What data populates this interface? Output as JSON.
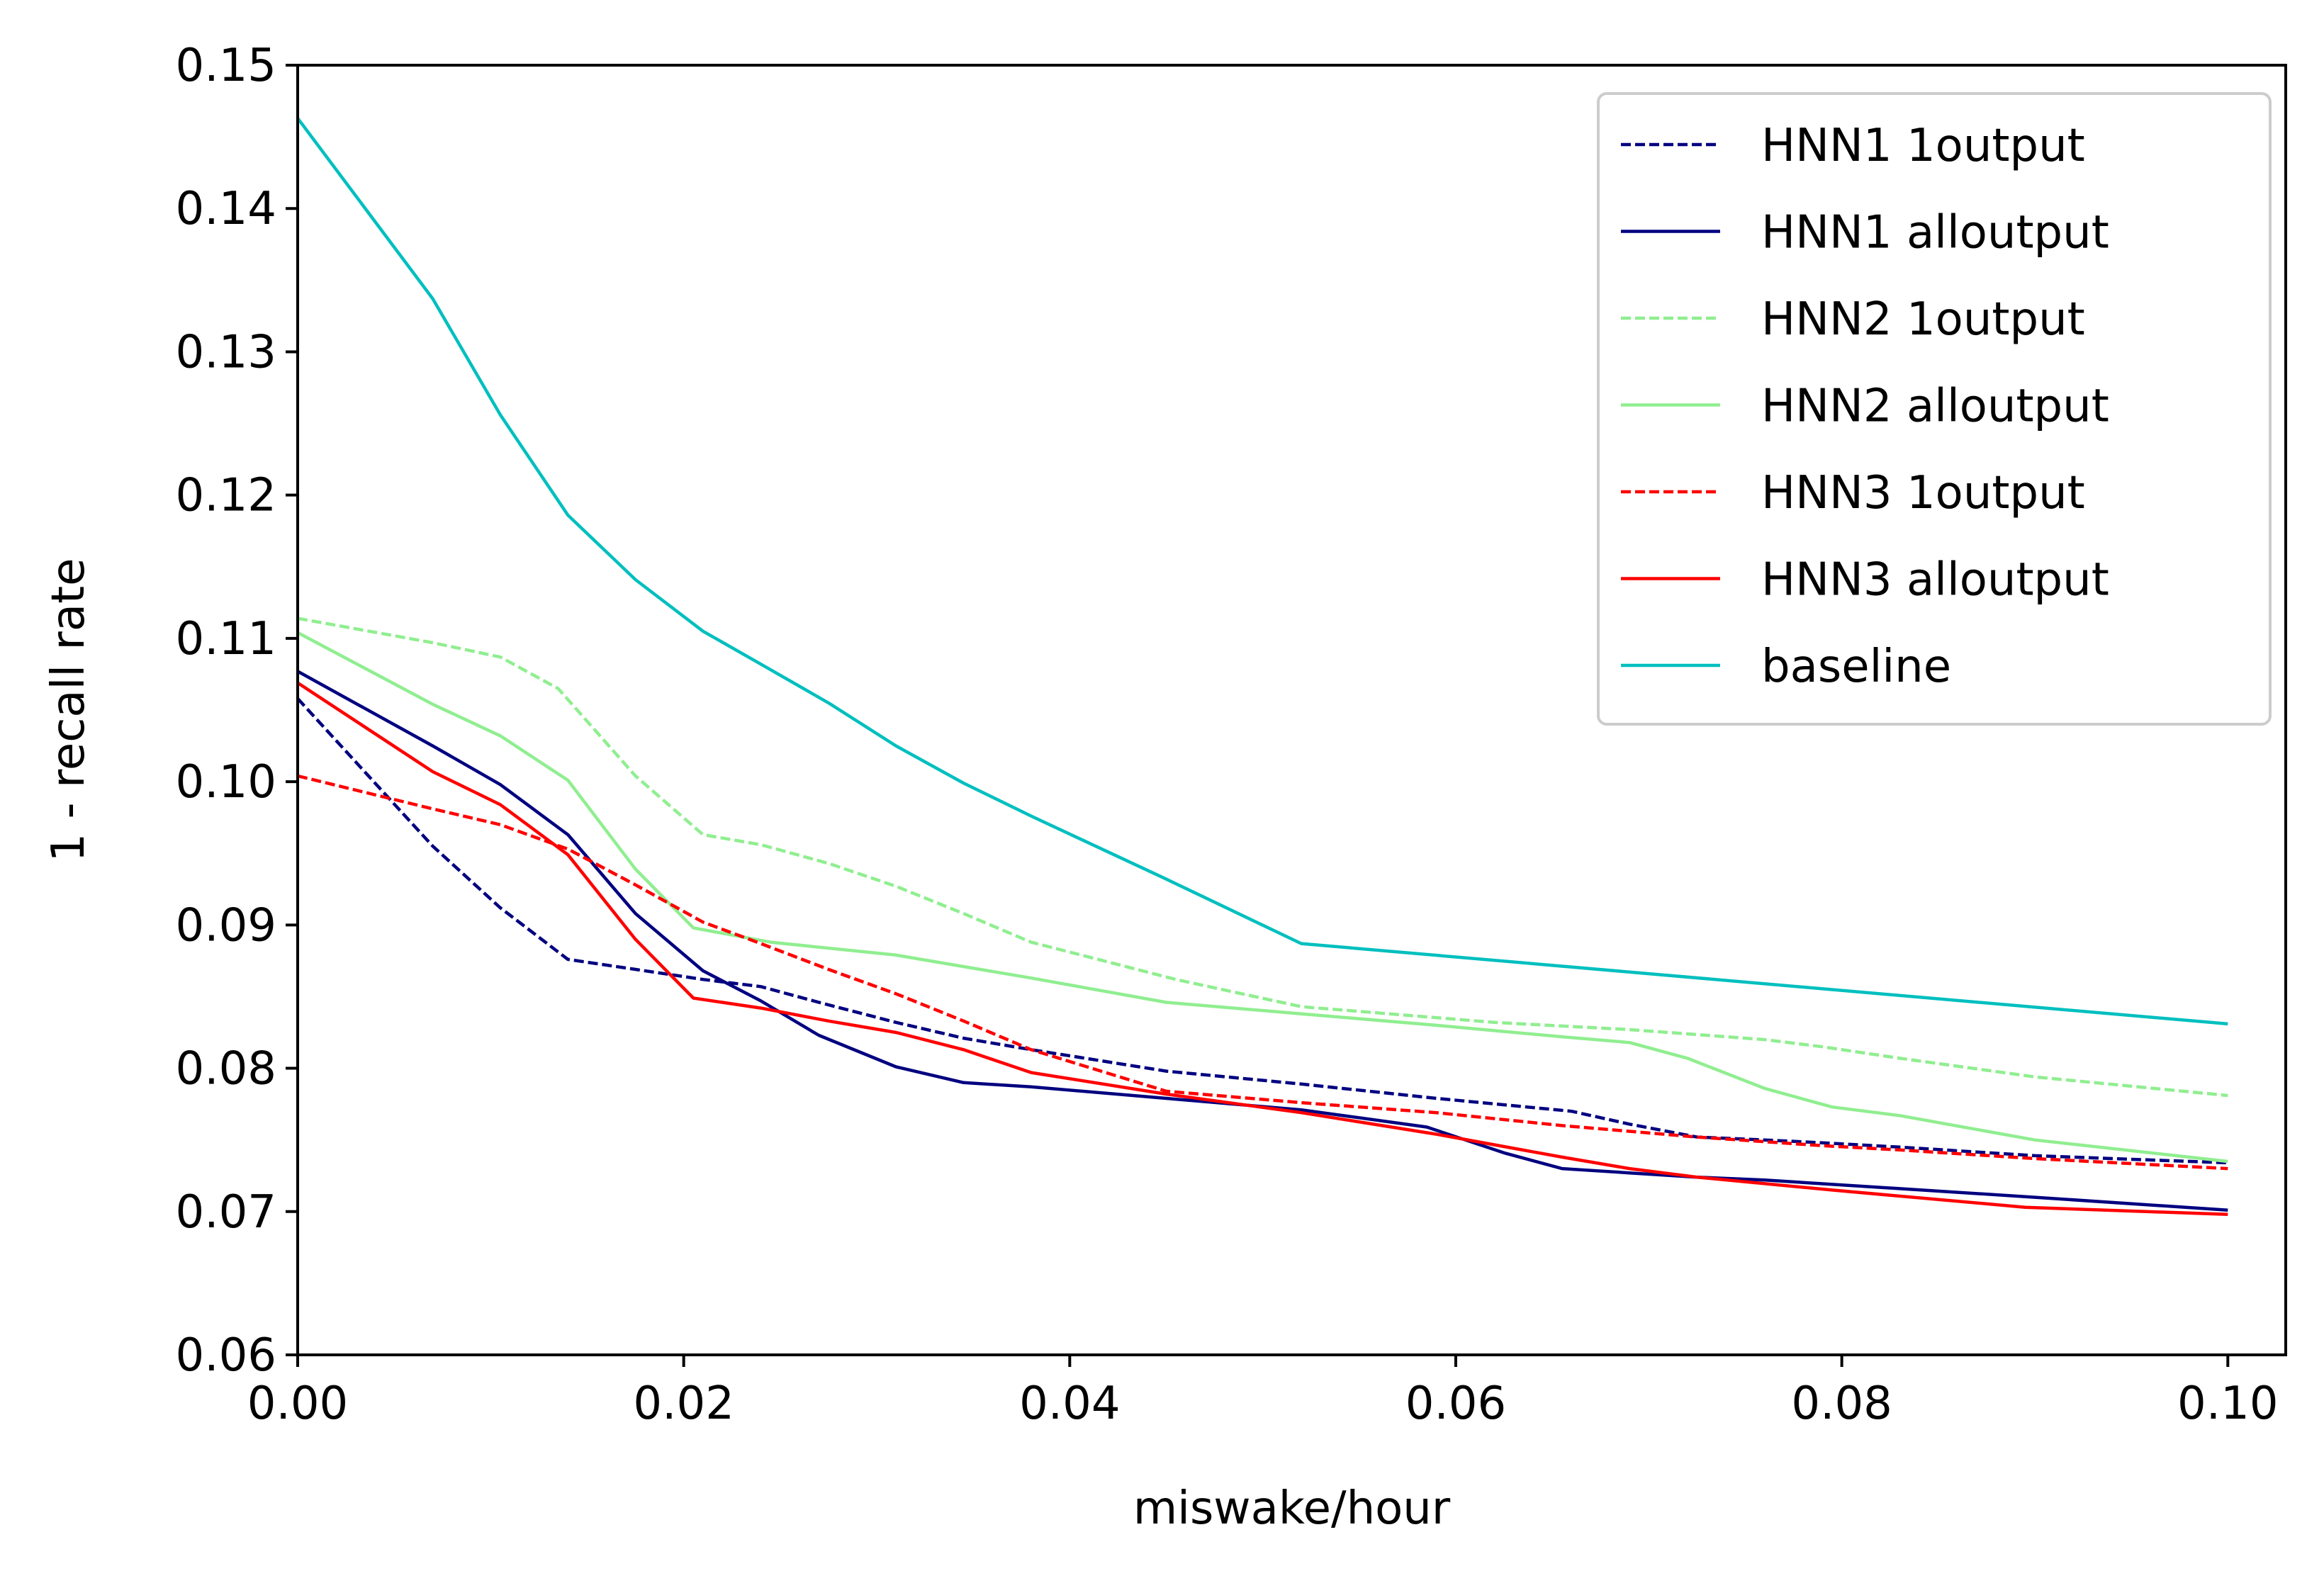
{
  "chart_data": {
    "type": "line",
    "title": "",
    "xlabel": "miswake/hour",
    "ylabel": "1 - recall rate",
    "xlim": [
      0.0,
      0.103
    ],
    "ylim": [
      0.06,
      0.15
    ],
    "xticks": [
      0.0,
      0.02,
      0.04,
      0.06,
      0.08,
      0.1
    ],
    "xtick_labels": [
      "0.00",
      "0.02",
      "0.04",
      "0.06",
      "0.08",
      "0.10"
    ],
    "yticks": [
      0.06,
      0.07,
      0.08,
      0.09,
      0.1,
      0.11,
      0.12,
      0.13,
      0.14,
      0.15
    ],
    "ytick_labels": [
      "0.06",
      "0.07",
      "0.08",
      "0.09",
      "0.10",
      "0.11",
      "0.12",
      "0.13",
      "0.14",
      "0.15"
    ],
    "grid": false,
    "legend_position": "top-right",
    "series": [
      {
        "name": "HNN1 1output",
        "color": "#000080",
        "dash": "dashed",
        "x": [
          0.0,
          0.007,
          0.0105,
          0.014,
          0.0175,
          0.021,
          0.024,
          0.027,
          0.031,
          0.0345,
          0.038,
          0.045,
          0.052,
          0.059,
          0.066,
          0.069,
          0.0725,
          0.076,
          0.079,
          0.083,
          0.09,
          0.1
        ],
        "y": [
          0.1058,
          0.0955,
          0.0912,
          0.0876,
          0.0869,
          0.0862,
          0.0857,
          0.0846,
          0.0832,
          0.0821,
          0.0813,
          0.0798,
          0.0789,
          0.0779,
          0.077,
          0.0761,
          0.0752,
          0.075,
          0.0748,
          0.0745,
          0.0739,
          0.0734
        ]
      },
      {
        "name": "HNN1 alloutput",
        "color": "#000080",
        "dash": "solid",
        "x": [
          0.0,
          0.007,
          0.0105,
          0.014,
          0.0175,
          0.021,
          0.024,
          0.027,
          0.031,
          0.0345,
          0.038,
          0.045,
          0.052,
          0.0585,
          0.0625,
          0.0655,
          0.069,
          0.0725,
          0.076,
          0.083,
          0.09,
          0.1
        ],
        "y": [
          0.1077,
          0.1025,
          0.0998,
          0.0963,
          0.0908,
          0.0868,
          0.0847,
          0.0823,
          0.0801,
          0.079,
          0.0787,
          0.0779,
          0.0771,
          0.0759,
          0.0741,
          0.073,
          0.0727,
          0.0724,
          0.0722,
          0.0716,
          0.071,
          0.0701
        ]
      },
      {
        "name": "HNN2 1output",
        "color": "#90ee90",
        "dash": "dashed",
        "x": [
          0.0,
          0.007,
          0.0105,
          0.0135,
          0.0175,
          0.021,
          0.024,
          0.0275,
          0.031,
          0.0345,
          0.038,
          0.0455,
          0.052,
          0.062,
          0.069,
          0.073,
          0.076,
          0.079,
          0.083,
          0.09,
          0.1
        ],
        "y": [
          0.1114,
          0.1097,
          0.1087,
          0.1065,
          0.1004,
          0.0963,
          0.0956,
          0.0943,
          0.0927,
          0.0908,
          0.0888,
          0.0862,
          0.0843,
          0.0832,
          0.0827,
          0.0823,
          0.082,
          0.0815,
          0.0807,
          0.0794,
          0.0781
        ]
      },
      {
        "name": "HNN2 alloutput",
        "color": "#90ee90",
        "dash": "solid",
        "x": [
          0.0,
          0.007,
          0.0105,
          0.014,
          0.0175,
          0.0205,
          0.0245,
          0.031,
          0.038,
          0.045,
          0.052,
          0.059,
          0.0655,
          0.069,
          0.072,
          0.076,
          0.0795,
          0.083,
          0.09,
          0.1
        ],
        "y": [
          0.1104,
          0.1054,
          0.1032,
          0.1001,
          0.0939,
          0.0898,
          0.0888,
          0.0879,
          0.0863,
          0.0846,
          0.0838,
          0.083,
          0.0822,
          0.0818,
          0.0807,
          0.0786,
          0.0773,
          0.0767,
          0.075,
          0.0735
        ]
      },
      {
        "name": "HNN3 1output",
        "color": "#ff0000",
        "dash": "dashed",
        "x": [
          0.0,
          0.007,
          0.0105,
          0.014,
          0.0175,
          0.021,
          0.024,
          0.0275,
          0.031,
          0.0345,
          0.038,
          0.045,
          0.052,
          0.059,
          0.0655,
          0.0725,
          0.079,
          0.083,
          0.09,
          0.1
        ],
        "y": [
          0.1004,
          0.0981,
          0.097,
          0.0953,
          0.0928,
          0.0902,
          0.0887,
          0.0869,
          0.0852,
          0.0833,
          0.0813,
          0.0784,
          0.0776,
          0.0769,
          0.076,
          0.0752,
          0.0746,
          0.0743,
          0.0737,
          0.073
        ]
      },
      {
        "name": "HNN3 alloutput",
        "color": "#ff0000",
        "dash": "solid",
        "x": [
          0.0,
          0.007,
          0.0105,
          0.014,
          0.0175,
          0.0205,
          0.024,
          0.0275,
          0.031,
          0.0345,
          0.038,
          0.045,
          0.052,
          0.059,
          0.0655,
          0.069,
          0.0725,
          0.0795,
          0.0895,
          0.1
        ],
        "y": [
          0.1069,
          0.1007,
          0.0984,
          0.0949,
          0.089,
          0.0849,
          0.0842,
          0.0833,
          0.0825,
          0.0813,
          0.0797,
          0.0782,
          0.0769,
          0.0754,
          0.0738,
          0.073,
          0.0724,
          0.0715,
          0.0703,
          0.0698
        ]
      },
      {
        "name": "baseline",
        "color": "#00bfbf",
        "dash": "solid",
        "x": [
          0.0,
          0.007,
          0.0105,
          0.014,
          0.0175,
          0.021,
          0.024,
          0.0275,
          0.031,
          0.0345,
          0.038,
          0.045,
          0.052,
          0.1
        ],
        "y": [
          0.1463,
          0.1337,
          0.1256,
          0.1186,
          0.1141,
          0.1105,
          0.1082,
          0.1055,
          0.1025,
          0.0999,
          0.0976,
          0.0932,
          0.0887,
          0.0831
        ]
      }
    ]
  }
}
